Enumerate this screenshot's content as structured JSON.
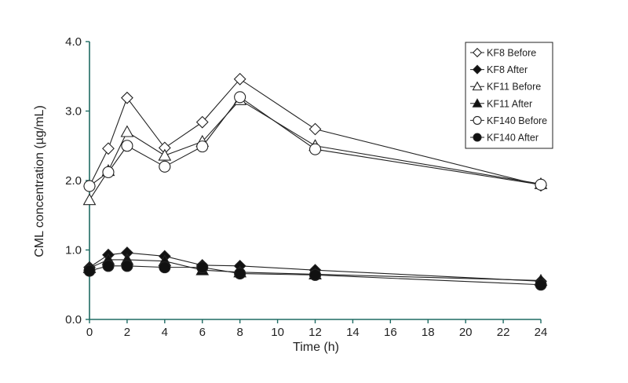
{
  "chart_data": {
    "type": "line",
    "title": "",
    "xlabel": "Time (h)",
    "ylabel": "CML concentration (µg/mL)",
    "xlim": [
      0,
      24
    ],
    "ylim": [
      0,
      4
    ],
    "x_ticks": [
      0,
      2,
      4,
      6,
      8,
      10,
      12,
      14,
      16,
      18,
      20,
      22,
      24
    ],
    "x_tick_labels": [
      "0",
      "2",
      "4",
      "6",
      "8",
      "10",
      "12",
      "14",
      "16",
      "18",
      "20",
      "22",
      "24"
    ],
    "y_ticks": [
      0,
      1,
      2,
      3,
      4
    ],
    "y_tick_labels": [
      "0.0",
      "1.0",
      "2.0",
      "3.0",
      "4.0"
    ],
    "grid": false,
    "legend_position": "top-right",
    "axis_color": "#1f6b63",
    "x": [
      0,
      1,
      2,
      4,
      6,
      8,
      12,
      24
    ],
    "series": [
      {
        "name": "KF8 Before",
        "marker": "diamond",
        "filled": false,
        "values": [
          1.92,
          2.46,
          3.19,
          2.47,
          2.84,
          3.46,
          2.74,
          1.93
        ]
      },
      {
        "name": "KF8 After",
        "marker": "diamond",
        "filled": true,
        "values": [
          0.75,
          0.93,
          0.96,
          0.91,
          0.78,
          0.77,
          0.71,
          0.55
        ]
      },
      {
        "name": "KF11 Before",
        "marker": "triangle",
        "filled": false,
        "values": [
          1.72,
          2.14,
          2.7,
          2.36,
          2.56,
          3.16,
          2.5,
          1.95
        ]
      },
      {
        "name": "KF11 After",
        "marker": "triangle",
        "filled": true,
        "values": [
          0.74,
          0.86,
          0.86,
          0.84,
          0.71,
          0.68,
          0.65,
          0.56
        ]
      },
      {
        "name": "KF140 Before",
        "marker": "circle",
        "filled": false,
        "values": [
          1.92,
          2.12,
          2.5,
          2.2,
          2.49,
          3.2,
          2.45,
          1.94
        ]
      },
      {
        "name": "KF140 After",
        "marker": "circle",
        "filled": true,
        "values": [
          0.7,
          0.77,
          0.77,
          0.75,
          0.75,
          0.66,
          0.64,
          0.5
        ]
      }
    ]
  }
}
